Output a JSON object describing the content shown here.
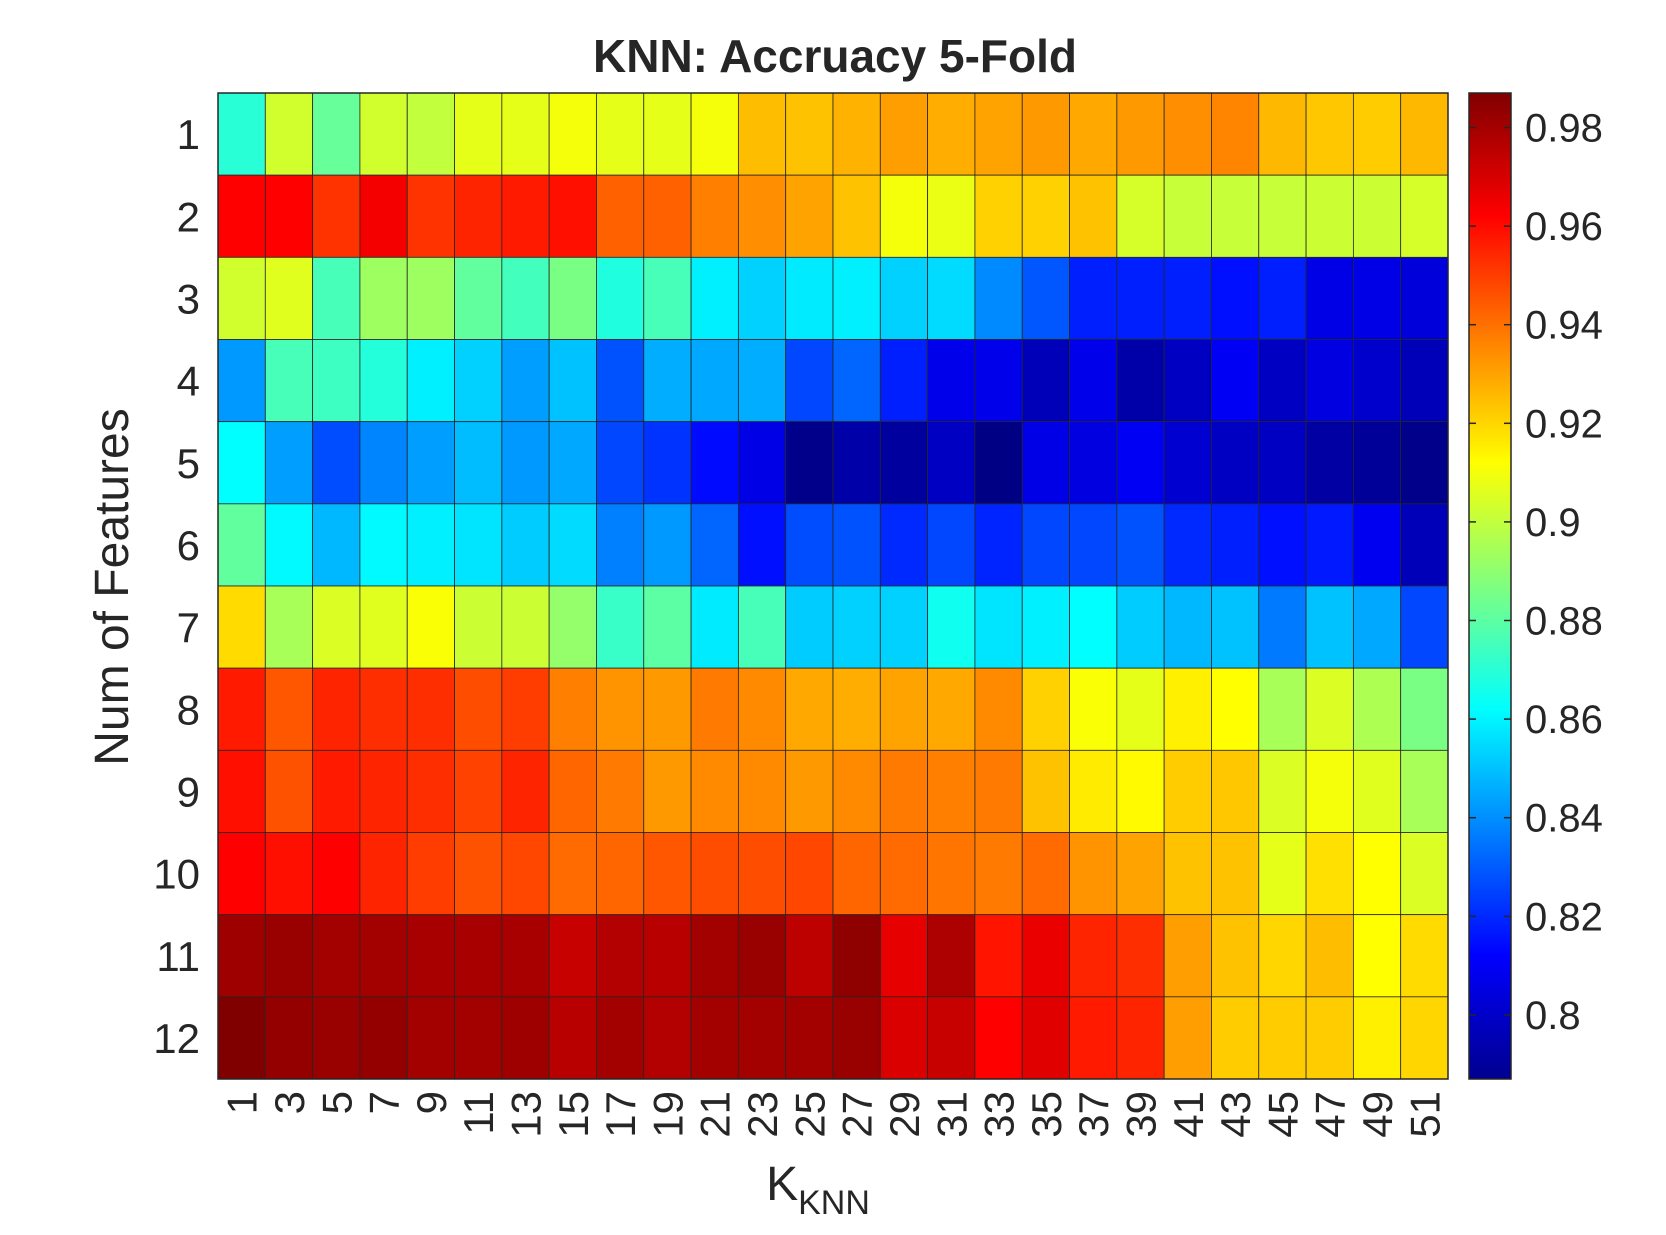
{
  "chart_data": {
    "type": "heatmap",
    "title": "KNN: Accruacy 5-Fold",
    "xlabel": "K",
    "xlabel_subscript": "KNN",
    "ylabel": "Num of Features",
    "x": [
      "1",
      "3",
      "5",
      "7",
      "9",
      "11",
      "13",
      "15",
      "17",
      "19",
      "21",
      "23",
      "25",
      "27",
      "29",
      "31",
      "33",
      "35",
      "37",
      "39",
      "41",
      "43",
      "45",
      "47",
      "49",
      "51"
    ],
    "y": [
      "1",
      "2",
      "3",
      "4",
      "5",
      "6",
      "7",
      "8",
      "9",
      "10",
      "11",
      "12"
    ],
    "colormap": "jet",
    "clim": [
      0.787,
      0.987
    ],
    "colorbar_ticks": [
      {
        "value": 0.8,
        "label": "0.8"
      },
      {
        "value": 0.82,
        "label": "0.82"
      },
      {
        "value": 0.84,
        "label": "0.84"
      },
      {
        "value": 0.86,
        "label": "0.86"
      },
      {
        "value": 0.88,
        "label": "0.88"
      },
      {
        "value": 0.9,
        "label": "0.9"
      },
      {
        "value": 0.92,
        "label": "0.92"
      },
      {
        "value": 0.94,
        "label": "0.94"
      },
      {
        "value": 0.96,
        "label": "0.96"
      },
      {
        "value": 0.98,
        "label": "0.98"
      }
    ],
    "values": [
      [
        0.87,
        0.903,
        0.882,
        0.903,
        0.9,
        0.907,
        0.907,
        0.91,
        0.907,
        0.907,
        0.91,
        0.925,
        0.924,
        0.927,
        0.931,
        0.928,
        0.93,
        0.932,
        0.929,
        0.932,
        0.934,
        0.936,
        0.926,
        0.923,
        0.922,
        0.926
      ],
      [
        0.962,
        0.962,
        0.952,
        0.964,
        0.952,
        0.955,
        0.957,
        0.959,
        0.943,
        0.943,
        0.937,
        0.934,
        0.93,
        0.924,
        0.91,
        0.908,
        0.921,
        0.921,
        0.924,
        0.904,
        0.901,
        0.901,
        0.901,
        0.902,
        0.902,
        0.904
      ],
      [
        0.903,
        0.906,
        0.876,
        0.893,
        0.893,
        0.881,
        0.875,
        0.886,
        0.868,
        0.876,
        0.859,
        0.853,
        0.858,
        0.859,
        0.853,
        0.855,
        0.839,
        0.829,
        0.818,
        0.818,
        0.818,
        0.815,
        0.818,
        0.807,
        0.807,
        0.805
      ],
      [
        0.842,
        0.876,
        0.874,
        0.869,
        0.859,
        0.853,
        0.843,
        0.85,
        0.828,
        0.846,
        0.845,
        0.846,
        0.826,
        0.832,
        0.818,
        0.808,
        0.808,
        0.798,
        0.808,
        0.795,
        0.8,
        0.81,
        0.8,
        0.806,
        0.802,
        0.798
      ],
      [
        0.862,
        0.843,
        0.827,
        0.838,
        0.843,
        0.849,
        0.842,
        0.845,
        0.826,
        0.822,
        0.814,
        0.807,
        0.789,
        0.795,
        0.793,
        0.8,
        0.788,
        0.807,
        0.806,
        0.81,
        0.803,
        0.8,
        0.8,
        0.794,
        0.792,
        0.789
      ],
      [
        0.881,
        0.861,
        0.848,
        0.861,
        0.859,
        0.857,
        0.852,
        0.855,
        0.837,
        0.842,
        0.832,
        0.815,
        0.827,
        0.828,
        0.82,
        0.826,
        0.819,
        0.826,
        0.826,
        0.828,
        0.82,
        0.818,
        0.815,
        0.817,
        0.809,
        0.798
      ],
      [
        0.919,
        0.895,
        0.905,
        0.906,
        0.911,
        0.902,
        0.902,
        0.891,
        0.873,
        0.88,
        0.858,
        0.876,
        0.852,
        0.853,
        0.853,
        0.865,
        0.857,
        0.859,
        0.862,
        0.852,
        0.848,
        0.85,
        0.836,
        0.85,
        0.845,
        0.826
      ],
      [
        0.957,
        0.945,
        0.955,
        0.953,
        0.953,
        0.947,
        0.95,
        0.937,
        0.933,
        0.932,
        0.938,
        0.935,
        0.929,
        0.928,
        0.93,
        0.929,
        0.935,
        0.921,
        0.911,
        0.907,
        0.915,
        0.912,
        0.895,
        0.905,
        0.896,
        0.886
      ],
      [
        0.959,
        0.946,
        0.957,
        0.955,
        0.953,
        0.949,
        0.955,
        0.942,
        0.938,
        0.932,
        0.935,
        0.935,
        0.932,
        0.935,
        0.938,
        0.937,
        0.938,
        0.924,
        0.916,
        0.913,
        0.922,
        0.923,
        0.905,
        0.91,
        0.906,
        0.895
      ],
      [
        0.962,
        0.959,
        0.962,
        0.955,
        0.95,
        0.946,
        0.948,
        0.941,
        0.942,
        0.945,
        0.947,
        0.947,
        0.948,
        0.942,
        0.941,
        0.939,
        0.938,
        0.941,
        0.933,
        0.93,
        0.924,
        0.924,
        0.907,
        0.918,
        0.912,
        0.905
      ],
      [
        0.981,
        0.982,
        0.98,
        0.98,
        0.979,
        0.979,
        0.979,
        0.973,
        0.977,
        0.976,
        0.98,
        0.982,
        0.975,
        0.984,
        0.967,
        0.978,
        0.958,
        0.966,
        0.955,
        0.953,
        0.931,
        0.924,
        0.92,
        0.925,
        0.912,
        0.919
      ],
      [
        0.987,
        0.983,
        0.982,
        0.983,
        0.98,
        0.98,
        0.981,
        0.976,
        0.98,
        0.977,
        0.98,
        0.98,
        0.98,
        0.982,
        0.969,
        0.973,
        0.962,
        0.968,
        0.957,
        0.955,
        0.931,
        0.922,
        0.922,
        0.922,
        0.915,
        0.92
      ]
    ]
  }
}
